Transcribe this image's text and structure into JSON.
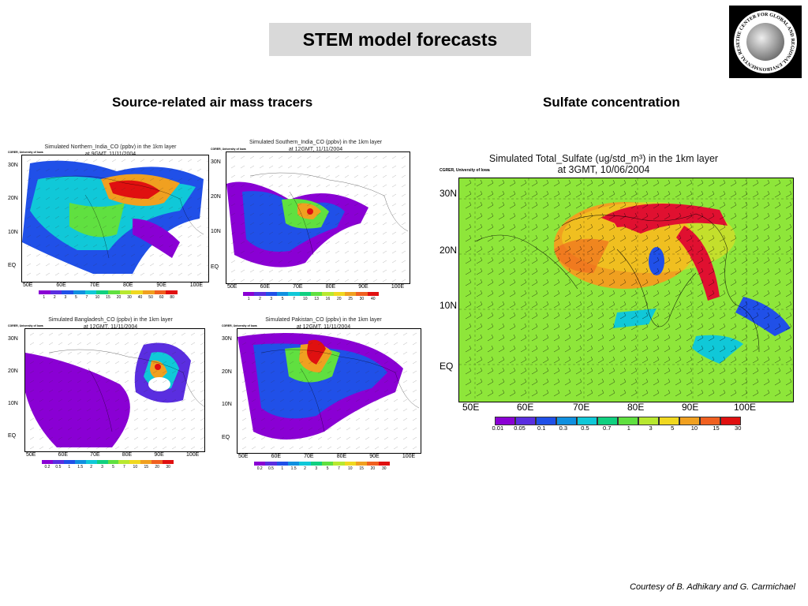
{
  "slide": {
    "title": "STEM model forecasts",
    "left_heading": "Source-related air mass tracers",
    "right_heading": "Sulfate concentration",
    "credit": "Courtesy of B. Adhikary and G. Carmichael",
    "logo_text": "THE CENTER FOR GLOBAL AND REGIONAL ENVIRONMENTAL RESEARCH"
  },
  "small_panels": [
    {
      "title_line1": "Simulated Northern_India_CO (ppbv) in the 1km layer",
      "title_line2": "at 9GMT, 11/11/2004",
      "org_label": "CGRER, University of Iowa",
      "lat_labels": [
        "30N",
        "20N",
        "10N",
        "EQ"
      ],
      "lon_labels": [
        "50E",
        "60E",
        "70E",
        "80E",
        "90E",
        "100E"
      ],
      "cbar_ticks": [
        "1",
        "2",
        "3",
        "5",
        "7",
        "10",
        "15",
        "20",
        "30",
        "40",
        "50",
        "60",
        "80"
      ]
    },
    {
      "title_line1": "Simulated Southern_India_CO (ppbv) in the 1km layer",
      "title_line2": "at 12GMT, 11/11/2004",
      "org_label": "CGRER, University of Iowa",
      "lat_labels": [
        "30N",
        "20N",
        "10N",
        "EQ"
      ],
      "lon_labels": [
        "50E",
        "60E",
        "70E",
        "80E",
        "90E",
        "100E"
      ],
      "cbar_ticks": [
        "1",
        "2",
        "3",
        "5",
        "7",
        "10",
        "13",
        "16",
        "20",
        "25",
        "30",
        "40"
      ]
    },
    {
      "title_line1": "Simulated Bangladesh_CO (ppbv) in the 1km layer",
      "title_line2": "at 12GMT, 11/11/2004",
      "org_label": "CGRER, University of Iowa",
      "lat_labels": [
        "30N",
        "20N",
        "10N",
        "EQ"
      ],
      "lon_labels": [
        "50E",
        "60E",
        "70E",
        "80E",
        "90E",
        "100E"
      ],
      "cbar_ticks": [
        "0.2",
        "0.5",
        "1",
        "1.5",
        "2",
        "3",
        "5",
        "7",
        "10",
        "15",
        "20",
        "30"
      ]
    },
    {
      "title_line1": "Simulated Pakistan_CO (ppbv) in the 1km layer",
      "title_line2": "at 12GMT, 11/11/2004",
      "org_label": "CGRER, University of Iowa",
      "lat_labels": [
        "30N",
        "20N",
        "10N",
        "EQ"
      ],
      "lon_labels": [
        "50E",
        "60E",
        "70E",
        "80E",
        "90E",
        "100E"
      ],
      "cbar_ticks": [
        "0.2",
        "0.5",
        "1",
        "1.5",
        "2",
        "3",
        "5",
        "7",
        "10",
        "15",
        "20",
        "30"
      ]
    }
  ],
  "big_panel": {
    "title_line1": "Simulated Total_Sulfate (ug/std_m³) in the 1km layer",
    "title_line2": "at 3GMT, 10/06/2004",
    "org_label": "CGRER, University of Iowa",
    "lat_labels": [
      "30N",
      "20N",
      "10N",
      "EQ"
    ],
    "lon_labels": [
      "50E",
      "60E",
      "70E",
      "80E",
      "90E",
      "100E"
    ],
    "cbar_ticks": [
      "0.01",
      "0.05",
      "0.1",
      "0.3",
      "0.5",
      "0.7",
      "1",
      "3",
      "5",
      "10",
      "15",
      "30"
    ]
  },
  "colors": {
    "scale": [
      "#8a00d4",
      "#5a2ee0",
      "#2050e8",
      "#1090e0",
      "#10c8d8",
      "#10d080",
      "#60e040",
      "#b8e830",
      "#f0d820",
      "#f0a020",
      "#f06020",
      "#e01010"
    ],
    "land_green": "#8ee63a"
  }
}
